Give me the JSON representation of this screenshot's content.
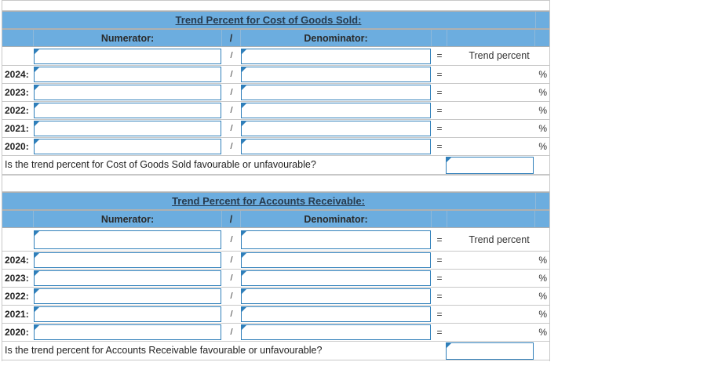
{
  "cogs": {
    "title": "Trend Percent for Cost of Goods Sold:",
    "numerator_label": "Numerator:",
    "divider": "/",
    "denominator_label": "Denominator:",
    "equals": "=",
    "trend_label": "Trend percent",
    "percent_sign": "%",
    "years": [
      "2024:",
      "2023:",
      "2022:",
      "2021:",
      "2020:"
    ],
    "question": "Is the trend percent for Cost of Goods Sold favourable or unfavourable?"
  },
  "ar": {
    "title": "Trend Percent for Accounts Receivable:",
    "numerator_label": "Numerator:",
    "divider": "/",
    "denominator_label": "Denominator:",
    "equals": "=",
    "trend_label": "Trend percent",
    "percent_sign": "%",
    "years": [
      "2024:",
      "2023:",
      "2022:",
      "2021:",
      "2020:"
    ],
    "question": "Is the trend percent for Accounts Receivable favourable or unfavourable?"
  },
  "colors": {
    "header": "#6caddf",
    "input_border": "#2f7fba"
  }
}
